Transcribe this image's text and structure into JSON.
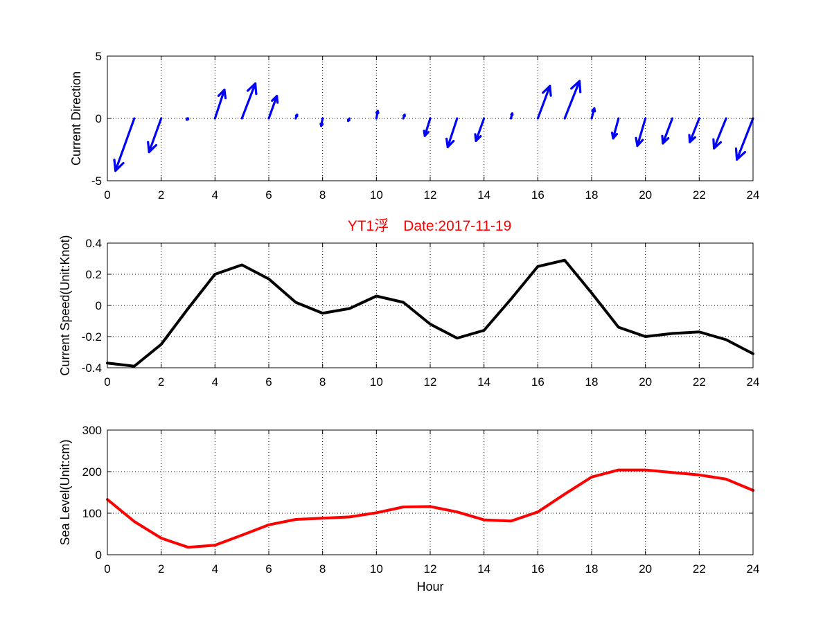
{
  "figure_title": "YT1浮　Date:2017-11-19",
  "colors": {
    "arrows": "#0000ff",
    "speed_line": "#000000",
    "sea_level_line": "#ff0000",
    "title": "#ff0000"
  },
  "chart_data": [
    {
      "type": "quiver",
      "title": "",
      "xlabel": "",
      "ylabel": "Current Direction",
      "xlim": [
        0,
        24
      ],
      "ylim": [
        -5,
        5
      ],
      "xticks": [
        0,
        2,
        4,
        6,
        8,
        10,
        12,
        14,
        16,
        18,
        20,
        22,
        24
      ],
      "yticks": [
        5,
        0,
        -5
      ],
      "grid": true,
      "arrows": [
        {
          "x": 1,
          "u": -0.7,
          "v": -4.2
        },
        {
          "x": 2,
          "u": -0.45,
          "v": -2.7
        },
        {
          "x": 3,
          "u": -0.05,
          "v": -0.1
        },
        {
          "x": 4,
          "u": 0.35,
          "v": 2.3
        },
        {
          "x": 5,
          "u": 0.5,
          "v": 2.8
        },
        {
          "x": 6,
          "u": 0.3,
          "v": 1.8
        },
        {
          "x": 7,
          "u": 0.05,
          "v": 0.3
        },
        {
          "x": 8,
          "u": -0.05,
          "v": -0.6
        },
        {
          "x": 9,
          "u": -0.05,
          "v": -0.2
        },
        {
          "x": 10,
          "u": 0.05,
          "v": 0.6
        },
        {
          "x": 11,
          "u": 0.05,
          "v": 0.3
        },
        {
          "x": 12,
          "u": -0.2,
          "v": -1.4
        },
        {
          "x": 13,
          "u": -0.35,
          "v": -2.3
        },
        {
          "x": 14,
          "u": -0.3,
          "v": -1.8
        },
        {
          "x": 15,
          "u": 0.05,
          "v": 0.4
        },
        {
          "x": 16,
          "u": 0.45,
          "v": 2.6
        },
        {
          "x": 17,
          "u": 0.55,
          "v": 3.0
        },
        {
          "x": 18,
          "u": 0.1,
          "v": 0.8
        },
        {
          "x": 19,
          "u": -0.2,
          "v": -1.6
        },
        {
          "x": 20,
          "u": -0.3,
          "v": -2.2
        },
        {
          "x": 21,
          "u": -0.35,
          "v": -2.0
        },
        {
          "x": 22,
          "u": -0.35,
          "v": -1.9
        },
        {
          "x": 23,
          "u": -0.45,
          "v": -2.4
        },
        {
          "x": 24,
          "u": -0.6,
          "v": -3.3
        }
      ]
    },
    {
      "type": "line",
      "title": "",
      "xlabel": "",
      "ylabel": "Current Speed(Unit:Knot)",
      "xlim": [
        0,
        24
      ],
      "ylim": [
        -0.4,
        0.4
      ],
      "xticks": [
        0,
        2,
        4,
        6,
        8,
        10,
        12,
        14,
        16,
        18,
        20,
        22,
        24
      ],
      "yticks": [
        0.4,
        0.2,
        0,
        -0.2,
        -0.4
      ],
      "grid": true,
      "x": [
        0,
        1,
        2,
        3,
        4,
        5,
        6,
        7,
        8,
        9,
        10,
        11,
        12,
        13,
        14,
        15,
        16,
        17,
        18,
        19,
        20,
        21,
        22,
        23,
        24
      ],
      "series": [
        {
          "values": [
            -0.37,
            -0.39,
            -0.25,
            -0.02,
            0.2,
            0.26,
            0.17,
            0.02,
            -0.05,
            -0.02,
            0.06,
            0.02,
            -0.12,
            -0.21,
            -0.16,
            0.04,
            0.25,
            0.29,
            0.08,
            -0.14,
            -0.2,
            -0.18,
            -0.17,
            -0.22,
            -0.31
          ]
        }
      ]
    },
    {
      "type": "line",
      "title": "",
      "xlabel": "Hour",
      "ylabel": "Sea Level(Unit:cm)",
      "xlim": [
        0,
        24
      ],
      "ylim": [
        0,
        300
      ],
      "xticks": [
        0,
        2,
        4,
        6,
        8,
        10,
        12,
        14,
        16,
        18,
        20,
        22,
        24
      ],
      "yticks": [
        300,
        200,
        100,
        0
      ],
      "grid": true,
      "x": [
        0,
        1,
        2,
        3,
        4,
        5,
        6,
        7,
        8,
        9,
        10,
        11,
        12,
        13,
        14,
        15,
        16,
        17,
        18,
        19,
        20,
        21,
        22,
        23,
        24
      ],
      "series": [
        {
          "values": [
            133,
            80,
            40,
            18,
            23,
            47,
            72,
            85,
            88,
            91,
            101,
            115,
            116,
            103,
            84,
            81,
            103,
            146,
            187,
            204,
            204,
            198,
            192,
            182,
            155
          ]
        }
      ]
    }
  ]
}
